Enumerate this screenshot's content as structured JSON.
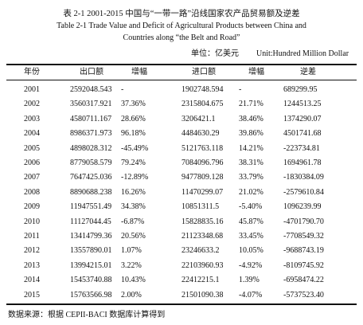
{
  "header": {
    "title_zh": "表 2-1 2001-2015 中国与“一带一路”沿线国家农产品贸易额及逆差",
    "title_en_1": "Table 2-1 Trade Value and Deficit of Agricultural Products between China and",
    "title_en_2": "Countries along “the Belt and Road”",
    "unit_zh": "单位：亿美元",
    "unit_en": "Unit:Hundred Million Dollar"
  },
  "table": {
    "columns": [
      "年份",
      "出口额",
      "增幅",
      "进口额",
      "增幅",
      "逆差"
    ],
    "rows": [
      [
        "2001",
        "2592048.543",
        "-",
        "1902748.594",
        "-",
        "689299.95"
      ],
      [
        "2002",
        "3560317.921",
        "37.36%",
        "2315804.675",
        "21.71%",
        "1244513.25"
      ],
      [
        "2003",
        "4580711.167",
        "28.66%",
        "3206421.1",
        "38.46%",
        "1374290.07"
      ],
      [
        "2004",
        "8986371.973",
        "96.18%",
        "4484630.29",
        "39.86%",
        "4501741.68"
      ],
      [
        "2005",
        "4898028.312",
        "-45.49%",
        "5121763.118",
        "14.21%",
        "-223734.81"
      ],
      [
        "2006",
        "8779058.579",
        "79.24%",
        "7084096.796",
        "38.31%",
        "1694961.78"
      ],
      [
        "2007",
        "7647425.036",
        "-12.89%",
        "9477809.128",
        "33.79%",
        "-1830384.09"
      ],
      [
        "2008",
        "8890688.238",
        "16.26%",
        "11470299.07",
        "21.02%",
        "-2579610.84"
      ],
      [
        "2009",
        "11947551.49",
        "34.38%",
        "10851311.5",
        "-5.40%",
        "1096239.99"
      ],
      [
        "2010",
        "11127044.45",
        "-6.87%",
        "15828835.16",
        "45.87%",
        "-4701790.70"
      ],
      [
        "2011",
        "13414799.36",
        "20.56%",
        "21123348.68",
        "33.45%",
        "-7708549.32"
      ],
      [
        "2012",
        "13557890.01",
        "1.07%",
        "23246633.2",
        "10.05%",
        "-9688743.19"
      ],
      [
        "2013",
        "13994215.01",
        "3.22%",
        "22103960.93",
        "-4.92%",
        "-8109745.92"
      ],
      [
        "2014",
        "15453740.88",
        "10.43%",
        "22412215.1",
        "1.39%",
        "-6958474.22"
      ],
      [
        "2015",
        "15763566.98",
        "2.00%",
        "21501090.38",
        "-4.07%",
        "-5737523.40"
      ]
    ]
  },
  "footer": {
    "source": "数据来源：根据 CEPII-BACI 数据库计算得到"
  }
}
